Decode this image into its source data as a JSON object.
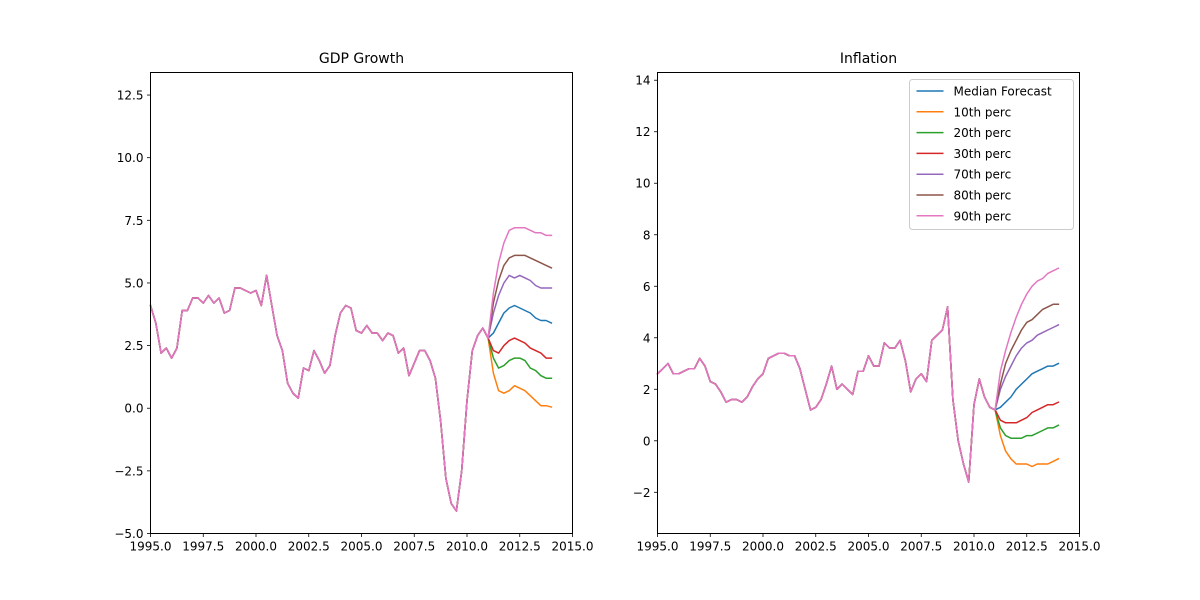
{
  "colors": {
    "median": "#1f77b4",
    "p10": "#ff7f0e",
    "p20": "#2ca02c",
    "p30": "#d62728",
    "p70": "#9467bd",
    "p80": "#8c564b",
    "p90": "#e377c2"
  },
  "chart_data": [
    {
      "type": "line",
      "title": "GDP Growth",
      "xlabel": "",
      "ylabel": "",
      "xlim": [
        1995.0,
        2015.0
      ],
      "ylim": [
        -5.0,
        13.4
      ],
      "xticks": [
        "1995.0",
        "1997.5",
        "2000.0",
        "2002.5",
        "2005.0",
        "2007.5",
        "2010.0",
        "2012.5",
        "2015.0"
      ],
      "yticks": [
        "−5.0",
        "−2.5",
        "0.0",
        "2.5",
        "5.0",
        "7.5",
        "10.0",
        "12.5"
      ],
      "legend": false,
      "grid": false,
      "history": {
        "x": [
          1995.0,
          1995.25,
          1995.5,
          1995.75,
          1996.0,
          1996.25,
          1996.5,
          1996.75,
          1997.0,
          1997.25,
          1997.5,
          1997.75,
          1998.0,
          1998.25,
          1998.5,
          1998.75,
          1999.0,
          1999.25,
          1999.5,
          1999.75,
          2000.0,
          2000.25,
          2000.5,
          2000.75,
          2001.0,
          2001.25,
          2001.5,
          2001.75,
          2002.0,
          2002.25,
          2002.5,
          2002.75,
          2003.0,
          2003.25,
          2003.5,
          2003.75,
          2004.0,
          2004.25,
          2004.5,
          2004.75,
          2005.0,
          2005.25,
          2005.5,
          2005.75,
          2006.0,
          2006.25,
          2006.5,
          2006.75,
          2007.0,
          2007.25,
          2007.5,
          2007.75,
          2008.0,
          2008.25,
          2008.5,
          2008.75,
          2009.0,
          2009.25,
          2009.5,
          2009.75,
          2010.0,
          2010.25,
          2010.5,
          2010.75,
          2011.0
        ],
        "y": [
          4.1,
          3.4,
          2.2,
          2.4,
          2.0,
          2.4,
          3.9,
          3.9,
          4.4,
          4.4,
          4.2,
          4.5,
          4.2,
          4.4,
          3.8,
          3.9,
          4.8,
          4.8,
          4.7,
          4.6,
          4.7,
          4.1,
          5.3,
          4.1,
          2.9,
          2.3,
          1.0,
          0.6,
          0.4,
          1.6,
          1.5,
          2.3,
          1.9,
          1.4,
          1.7,
          2.9,
          3.8,
          4.1,
          4.0,
          3.1,
          3.0,
          3.3,
          3.0,
          3.0,
          2.7,
          3.0,
          2.9,
          2.2,
          2.4,
          1.3,
          1.8,
          2.3,
          2.3,
          1.9,
          1.2,
          -0.5,
          -2.8,
          -3.8,
          -4.1,
          -2.5,
          0.3,
          2.3,
          2.9,
          3.2,
          2.8
        ]
      },
      "forecast_x": [
        2011.0,
        2011.25,
        2011.5,
        2011.75,
        2012.0,
        2012.25,
        2012.5,
        2012.75,
        2013.0,
        2013.25,
        2013.5,
        2013.75,
        2014.0
      ],
      "series": [
        {
          "name": "Median Forecast",
          "color_key": "median",
          "values": [
            2.8,
            3.0,
            3.4,
            3.8,
            4.0,
            4.1,
            4.0,
            3.9,
            3.8,
            3.6,
            3.5,
            3.5,
            3.4
          ]
        },
        {
          "name": "10th perc",
          "color_key": "p10",
          "values": [
            2.8,
            1.4,
            0.7,
            0.6,
            0.7,
            0.9,
            0.8,
            0.7,
            0.5,
            0.3,
            0.1,
            0.1,
            0.05
          ]
        },
        {
          "name": "20th perc",
          "color_key": "p20",
          "values": [
            2.8,
            2.0,
            1.6,
            1.7,
            1.9,
            2.0,
            2.0,
            1.9,
            1.6,
            1.5,
            1.3,
            1.2,
            1.2
          ]
        },
        {
          "name": "30th perc",
          "color_key": "p30",
          "values": [
            2.8,
            2.3,
            2.2,
            2.5,
            2.7,
            2.8,
            2.7,
            2.6,
            2.4,
            2.3,
            2.2,
            2.0,
            2.0
          ]
        },
        {
          "name": "70th perc",
          "color_key": "p70",
          "values": [
            2.8,
            3.8,
            4.5,
            5.0,
            5.3,
            5.2,
            5.3,
            5.2,
            5.1,
            4.9,
            4.8,
            4.8,
            4.8
          ]
        },
        {
          "name": "80th perc",
          "color_key": "p80",
          "values": [
            2.8,
            4.2,
            5.1,
            5.7,
            6.0,
            6.1,
            6.1,
            6.1,
            6.0,
            5.9,
            5.8,
            5.7,
            5.6
          ]
        },
        {
          "name": "90th perc",
          "color_key": "p90",
          "values": [
            2.8,
            4.6,
            5.8,
            6.6,
            7.1,
            7.2,
            7.2,
            7.2,
            7.1,
            7.0,
            7.0,
            6.9,
            6.9
          ]
        }
      ]
    },
    {
      "type": "line",
      "title": "Inflation",
      "xlabel": "",
      "ylabel": "",
      "xlim": [
        1995.0,
        2015.0
      ],
      "ylim": [
        -3.6,
        14.3
      ],
      "xticks": [
        "1995.0",
        "1997.5",
        "2000.0",
        "2002.5",
        "2005.0",
        "2007.5",
        "2010.0",
        "2012.5",
        "2015.0"
      ],
      "yticks": [
        "−2",
        "0",
        "2",
        "4",
        "6",
        "8",
        "10",
        "12",
        "14"
      ],
      "legend": true,
      "legend_position": "top-right",
      "grid": false,
      "history": {
        "x": [
          1995.0,
          1995.25,
          1995.5,
          1995.75,
          1996.0,
          1996.25,
          1996.5,
          1996.75,
          1997.0,
          1997.25,
          1997.5,
          1997.75,
          1998.0,
          1998.25,
          1998.5,
          1998.75,
          1999.0,
          1999.25,
          1999.5,
          1999.75,
          2000.0,
          2000.25,
          2000.5,
          2000.75,
          2001.0,
          2001.25,
          2001.5,
          2001.75,
          2002.0,
          2002.25,
          2002.5,
          2002.75,
          2003.0,
          2003.25,
          2003.5,
          2003.75,
          2004.0,
          2004.25,
          2004.5,
          2004.75,
          2005.0,
          2005.25,
          2005.5,
          2005.75,
          2006.0,
          2006.25,
          2006.5,
          2006.75,
          2007.0,
          2007.25,
          2007.5,
          2007.75,
          2008.0,
          2008.25,
          2008.5,
          2008.75,
          2009.0,
          2009.25,
          2009.5,
          2009.75,
          2010.0,
          2010.25,
          2010.5,
          2010.75,
          2011.0
        ],
        "y": [
          2.6,
          2.8,
          3.0,
          2.6,
          2.6,
          2.7,
          2.8,
          2.8,
          3.2,
          2.9,
          2.3,
          2.2,
          1.9,
          1.5,
          1.6,
          1.6,
          1.5,
          1.7,
          2.1,
          2.4,
          2.6,
          3.2,
          3.3,
          3.4,
          3.4,
          3.3,
          3.3,
          2.8,
          2.0,
          1.2,
          1.3,
          1.6,
          2.2,
          2.9,
          2.0,
          2.2,
          2.0,
          1.8,
          2.7,
          2.7,
          3.3,
          2.9,
          2.9,
          3.8,
          3.6,
          3.6,
          3.9,
          3.1,
          1.9,
          2.4,
          2.6,
          2.3,
          3.9,
          4.1,
          4.3,
          5.2,
          1.6,
          0.0,
          -0.9,
          -1.6,
          1.4,
          2.4,
          1.7,
          1.3,
          1.2
        ]
      },
      "forecast_x": [
        2011.0,
        2011.25,
        2011.5,
        2011.75,
        2012.0,
        2012.25,
        2012.5,
        2012.75,
        2013.0,
        2013.25,
        2013.5,
        2013.75,
        2014.0
      ],
      "series": [
        {
          "name": "Median Forecast",
          "color_key": "median",
          "values": [
            1.2,
            1.3,
            1.5,
            1.7,
            2.0,
            2.2,
            2.4,
            2.6,
            2.7,
            2.8,
            2.9,
            2.9,
            3.0
          ]
        },
        {
          "name": "10th perc",
          "color_key": "p10",
          "values": [
            1.2,
            0.2,
            -0.4,
            -0.7,
            -0.9,
            -0.9,
            -0.9,
            -1.0,
            -0.9,
            -0.9,
            -0.9,
            -0.8,
            -0.7
          ]
        },
        {
          "name": "20th perc",
          "color_key": "p20",
          "values": [
            1.2,
            0.5,
            0.2,
            0.1,
            0.1,
            0.1,
            0.2,
            0.2,
            0.3,
            0.4,
            0.5,
            0.5,
            0.6
          ]
        },
        {
          "name": "30th perc",
          "color_key": "p30",
          "values": [
            1.2,
            0.8,
            0.7,
            0.7,
            0.7,
            0.8,
            0.9,
            1.1,
            1.2,
            1.3,
            1.4,
            1.4,
            1.5
          ]
        },
        {
          "name": "70th perc",
          "color_key": "p70",
          "values": [
            1.2,
            2.0,
            2.5,
            2.9,
            3.3,
            3.6,
            3.8,
            3.9,
            4.1,
            4.2,
            4.3,
            4.4,
            4.5
          ]
        },
        {
          "name": "80th perc",
          "color_key": "p80",
          "values": [
            1.2,
            2.2,
            3.0,
            3.5,
            3.9,
            4.3,
            4.6,
            4.7,
            4.9,
            5.1,
            5.2,
            5.3,
            5.3
          ]
        },
        {
          "name": "90th perc",
          "color_key": "p90",
          "values": [
            1.2,
            2.7,
            3.5,
            4.2,
            4.8,
            5.3,
            5.7,
            6.0,
            6.2,
            6.3,
            6.5,
            6.6,
            6.7
          ]
        }
      ]
    }
  ]
}
